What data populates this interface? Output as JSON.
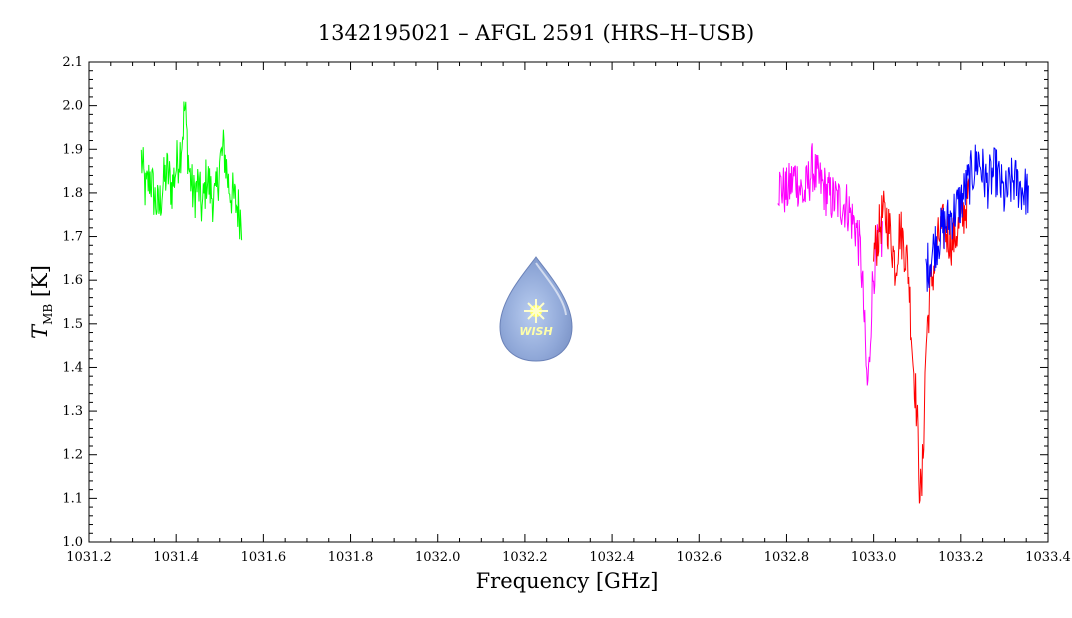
{
  "chart_data": {
    "type": "line",
    "title": "1342195021 – AFGL 2591 (HRS–H–USB)",
    "xlabel": "Frequency [GHz]",
    "ylabel_main": "T",
    "ylabel_sub": "MB",
    "ylabel_unit": "[K]",
    "xlim": [
      1031.2,
      1033.4
    ],
    "ylim": [
      1.0,
      2.1
    ],
    "xticks": [
      1031.2,
      1031.4,
      1031.6,
      1031.8,
      1032.0,
      1032.2,
      1032.4,
      1032.6,
      1032.8,
      1033.0,
      1033.2,
      1033.4
    ],
    "xtick_labels": [
      "1031.2",
      "1031.4",
      "1031.6",
      "1031.8",
      "1032.0",
      "1032.2",
      "1032.4",
      "1032.6",
      "1032.8",
      "1033.0",
      "1033.2",
      "1033.4"
    ],
    "yticks": [
      1.0,
      1.1,
      1.2,
      1.3,
      1.4,
      1.5,
      1.6,
      1.7,
      1.8,
      1.9,
      2.0,
      2.1
    ],
    "ytick_labels": [
      "1.0",
      "1.1",
      "1.2",
      "1.3",
      "1.4",
      "1.5",
      "1.6",
      "1.7",
      "1.8",
      "1.9",
      "2.0",
      "2.1"
    ],
    "grid": false,
    "logo": {
      "text": "WISH"
    },
    "series": [
      {
        "color": "#00ff00",
        "x": [
          1031.32,
          1031.33,
          1031.34,
          1031.35,
          1031.36,
          1031.37,
          1031.38,
          1031.39,
          1031.4,
          1031.41,
          1031.415,
          1031.42,
          1031.425,
          1031.43,
          1031.44,
          1031.45,
          1031.46,
          1031.47,
          1031.48,
          1031.49,
          1031.5,
          1031.51,
          1031.52,
          1031.53,
          1031.54,
          1031.55
        ],
        "y": [
          1.88,
          1.8,
          1.84,
          1.79,
          1.76,
          1.82,
          1.85,
          1.81,
          1.86,
          1.9,
          1.94,
          2.0,
          1.92,
          1.85,
          1.79,
          1.82,
          1.76,
          1.84,
          1.8,
          1.78,
          1.87,
          1.9,
          1.82,
          1.79,
          1.77,
          1.74
        ]
      },
      {
        "color": "#ff00ff",
        "x": [
          1032.78,
          1032.8,
          1032.82,
          1032.84,
          1032.86,
          1032.87,
          1032.88,
          1032.9,
          1032.92,
          1032.94,
          1032.95,
          1032.96,
          1032.97,
          1032.975,
          1032.98,
          1032.985,
          1032.99,
          1032.995,
          1033.0,
          1033.01,
          1033.02
        ],
        "y": [
          1.82,
          1.8,
          1.84,
          1.79,
          1.86,
          1.83,
          1.82,
          1.79,
          1.78,
          1.77,
          1.74,
          1.72,
          1.66,
          1.58,
          1.47,
          1.35,
          1.4,
          1.55,
          1.62,
          1.68,
          1.7
        ]
      },
      {
        "color": "#ff0000",
        "x": [
          1033.0,
          1033.01,
          1033.02,
          1033.03,
          1033.04,
          1033.05,
          1033.06,
          1033.07,
          1033.08,
          1033.09,
          1033.095,
          1033.1,
          1033.105,
          1033.11,
          1033.115,
          1033.12,
          1033.13,
          1033.14,
          1033.15,
          1033.16,
          1033.18,
          1033.2,
          1033.22
        ],
        "y": [
          1.66,
          1.7,
          1.75,
          1.74,
          1.7,
          1.63,
          1.72,
          1.68,
          1.62,
          1.42,
          1.36,
          1.28,
          1.14,
          1.1,
          1.26,
          1.45,
          1.58,
          1.64,
          1.7,
          1.72,
          1.69,
          1.73,
          1.8
        ]
      },
      {
        "color": "#0000ff",
        "x": [
          1033.12,
          1033.14,
          1033.16,
          1033.18,
          1033.2,
          1033.22,
          1033.24,
          1033.26,
          1033.28,
          1033.3,
          1033.32,
          1033.34,
          1033.355
        ],
        "y": [
          1.62,
          1.68,
          1.72,
          1.75,
          1.78,
          1.83,
          1.88,
          1.82,
          1.85,
          1.79,
          1.83,
          1.81,
          1.8
        ]
      }
    ]
  }
}
